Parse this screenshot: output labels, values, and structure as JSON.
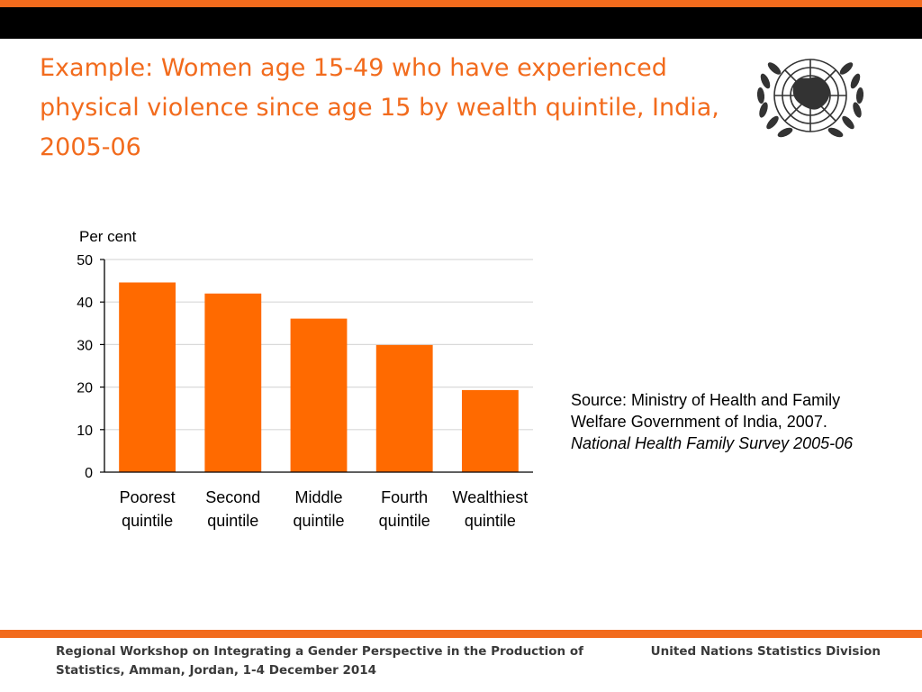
{
  "slide": {
    "title": "Example: Women age 15-49 who have experienced physical violence since age 15 by wealth quintile, India, 2005-06",
    "source_prefix": "Source: Ministry of Health and Family Welfare Government of India, 2007.",
    "source_publication": "National Health Family Survey 2005-06",
    "footer_left": "Regional Workshop on Integrating a Gender Perspective in the Production of Statistics, Amman, Jordan, 1-4 December 2014",
    "footer_right": "United Nations Statistics Division",
    "logo_icon": "un-emblem-icon"
  },
  "colors": {
    "accent": "#f26b1d",
    "bar": "#ff6a00",
    "header_bar": "#000000",
    "gridline": "#d9d9d9"
  },
  "chart_data": {
    "type": "bar",
    "title": "",
    "xlabel": "",
    "ylabel": "Per cent",
    "ylim": [
      0,
      50
    ],
    "yticks": [
      0,
      10,
      20,
      30,
      40,
      50
    ],
    "grid": true,
    "categories": [
      [
        "Poorest",
        "quintile"
      ],
      [
        "Second",
        "quintile"
      ],
      [
        "Middle",
        "quintile"
      ],
      [
        "Fourth",
        "quintile"
      ],
      [
        "Wealthiest",
        "quintile"
      ]
    ],
    "values": [
      44.6,
      42.0,
      36.1,
      29.9,
      19.3
    ]
  }
}
